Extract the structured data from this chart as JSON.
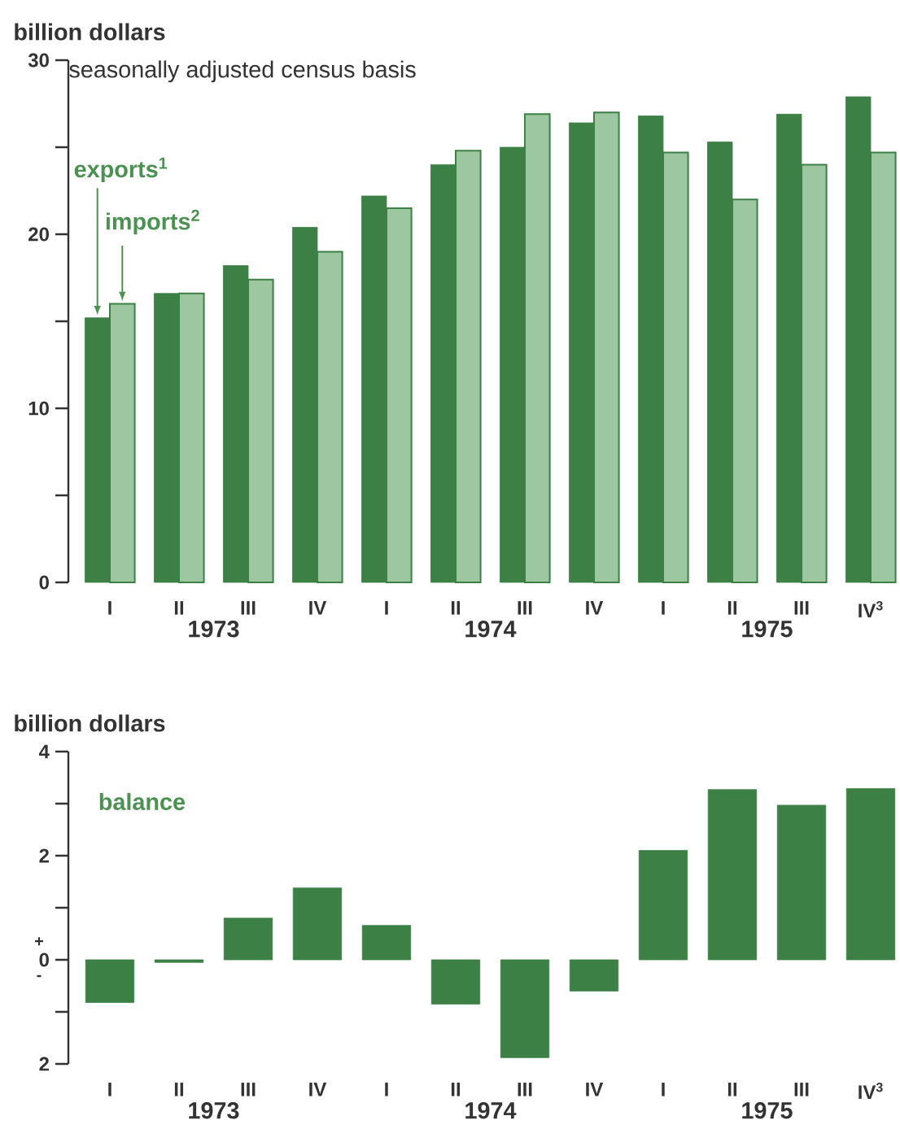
{
  "chart_data": [
    {
      "type": "bar",
      "ylabel": "billion dollars",
      "subtitle": "seasonally adjusted census basis",
      "categories": [
        "I",
        "II",
        "III",
        "IV",
        "I",
        "II",
        "III",
        "IV",
        "I",
        "II",
        "III",
        "IV$^{3}$"
      ],
      "series": [
        {
          "name": "exports$^{1}$",
          "color": "#3d8046",
          "values": [
            15.2,
            16.6,
            18.2,
            20.4,
            22.2,
            24.0,
            25.0,
            26.4,
            26.8,
            25.3,
            26.9,
            27.9
          ]
        },
        {
          "name": "imports$^{2}$",
          "color": "#9cc7a1",
          "values": [
            16.0,
            16.6,
            17.4,
            19.0,
            21.5,
            24.8,
            26.9,
            27.0,
            24.7,
            22.0,
            24.0,
            24.7
          ]
        }
      ],
      "ylim": [
        0,
        30
      ],
      "yticks": [
        0,
        {
          "value": 5,
          "label": null
        },
        10,
        {
          "value": 15,
          "label": null
        },
        20,
        {
          "value": 25,
          "label": null
        },
        30
      ],
      "annotations": [
        "1973",
        "1974",
        "1975"
      ]
    },
    {
      "type": "bar",
      "ylabel": "billion dollars",
      "categories": [
        "I",
        "II",
        "III",
        "IV",
        "I",
        "II",
        "III",
        "IV",
        "I",
        "II",
        "III",
        "IV$^{3}$"
      ],
      "series": [
        {
          "name": "balance",
          "color": "#3d8046",
          "values": [
            -0.82,
            -0.05,
            0.8,
            1.38,
            0.66,
            -0.85,
            -1.88,
            -0.6,
            2.1,
            3.27,
            2.97,
            3.29
          ]
        }
      ],
      "ylim": [
        -2,
        4
      ],
      "yticks": [
        {
          "value": -2,
          "label": "2"
        },
        {
          "value": -1,
          "label": null
        },
        0,
        {
          "value": 1,
          "label": null
        },
        2,
        {
          "value": 3,
          "label": null
        },
        4
      ],
      "annotations": [
        "1973",
        "1974",
        "1975",
        "+",
        "-"
      ]
    }
  ]
}
